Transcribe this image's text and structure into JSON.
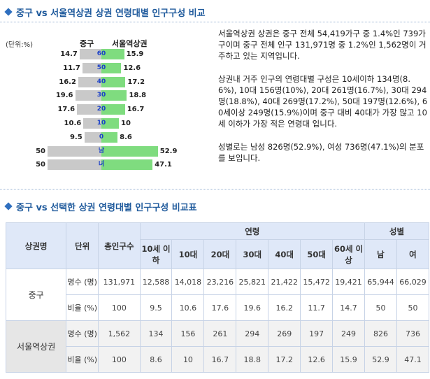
{
  "section1": {
    "title": "중구 vs 서울역상권 상권 연령대별 인구구성 비교"
  },
  "section2": {
    "title": "중구 vs 선택한 상권 연령대별 인구구성 비교표"
  },
  "pyramid": {
    "unit_label": "(단위:%)",
    "left_header": "중구",
    "right_header": "서울역상권",
    "rows": [
      {
        "age": "60",
        "left": 14.7,
        "right": 15.9,
        "left_label": "14.7",
        "right_label": "15.9"
      },
      {
        "age": "50",
        "left": 11.7,
        "right": 12.6,
        "left_label": "11.7",
        "right_label": "12.6"
      },
      {
        "age": "40",
        "left": 16.2,
        "right": 17.2,
        "left_label": "16.2",
        "right_label": "17.2"
      },
      {
        "age": "30",
        "left": 19.6,
        "right": 18.8,
        "left_label": "19.6",
        "right_label": "18.8"
      },
      {
        "age": "20",
        "left": 17.6,
        "right": 16.7,
        "left_label": "17.6",
        "right_label": "16.7"
      },
      {
        "age": "10",
        "left": 10.6,
        "right": 10,
        "left_label": "10.6",
        "right_label": "10"
      },
      {
        "age": "0",
        "left": 9.5,
        "right": 8.6,
        "left_label": "9.5",
        "right_label": "8.6"
      },
      {
        "age": "남",
        "left": 50,
        "right": 52.9,
        "left_label": "50",
        "right_label": "52.9"
      },
      {
        "age": "녀",
        "left": 50,
        "right": 47.1,
        "left_label": "50",
        "right_label": "47.1"
      }
    ]
  },
  "description": {
    "p1": "서울역상권 상권은 중구 전체 54,419가구 중 1.4%인 739가구이며 중구 전체 인구 131,971명 중 1.2%인 1,562명이 거주하고 있는 지역입니다.",
    "p2": "상권내 거주 인구의 연령대별 구성은 10세이하 134명(8.6%), 10대 156명(10%), 20대 261명(16.7%), 30대 294명(18.8%), 40대 269명(17.2%), 50대 197명(12.6%), 60세이상 249명(15.9%)이며 중구 대비 40대가 가장 많고 10세 이하가 가장 적은 연령대 입니다.",
    "p3": "성별로는 남성 826명(52.9%), 여성 736명(47.1%)의 분포를 보입니다."
  },
  "table": {
    "headers": {
      "area": "상권명",
      "unit": "단위",
      "total": "총인구수",
      "age_group": "연령",
      "gender_group": "성별",
      "ages": [
        "10세 이하",
        "10대",
        "20대",
        "30대",
        "40대",
        "50대",
        "60세 이상"
      ],
      "genders": [
        "남",
        "여"
      ]
    },
    "rows": [
      {
        "name": "중구",
        "count_label": "명수 (명)",
        "counts": [
          "131,971",
          "12,588",
          "14,018",
          "23,216",
          "25,821",
          "21,422",
          "15,472",
          "19,421",
          "65,944",
          "66,029"
        ],
        "ratio_label": "비율 (%)",
        "ratios": [
          "100",
          "9.5",
          "10.6",
          "17.6",
          "19.6",
          "16.2",
          "11.7",
          "14.7",
          "50",
          "50"
        ]
      },
      {
        "name": "서울역상권",
        "count_label": "명수 (명)",
        "counts": [
          "1,562",
          "134",
          "156",
          "261",
          "294",
          "269",
          "197",
          "249",
          "826",
          "736"
        ],
        "ratio_label": "비율 (%)",
        "ratios": [
          "100",
          "8.6",
          "10",
          "16.7",
          "18.8",
          "17.2",
          "12.6",
          "15.9",
          "52.9",
          "47.1"
        ]
      }
    ]
  }
}
